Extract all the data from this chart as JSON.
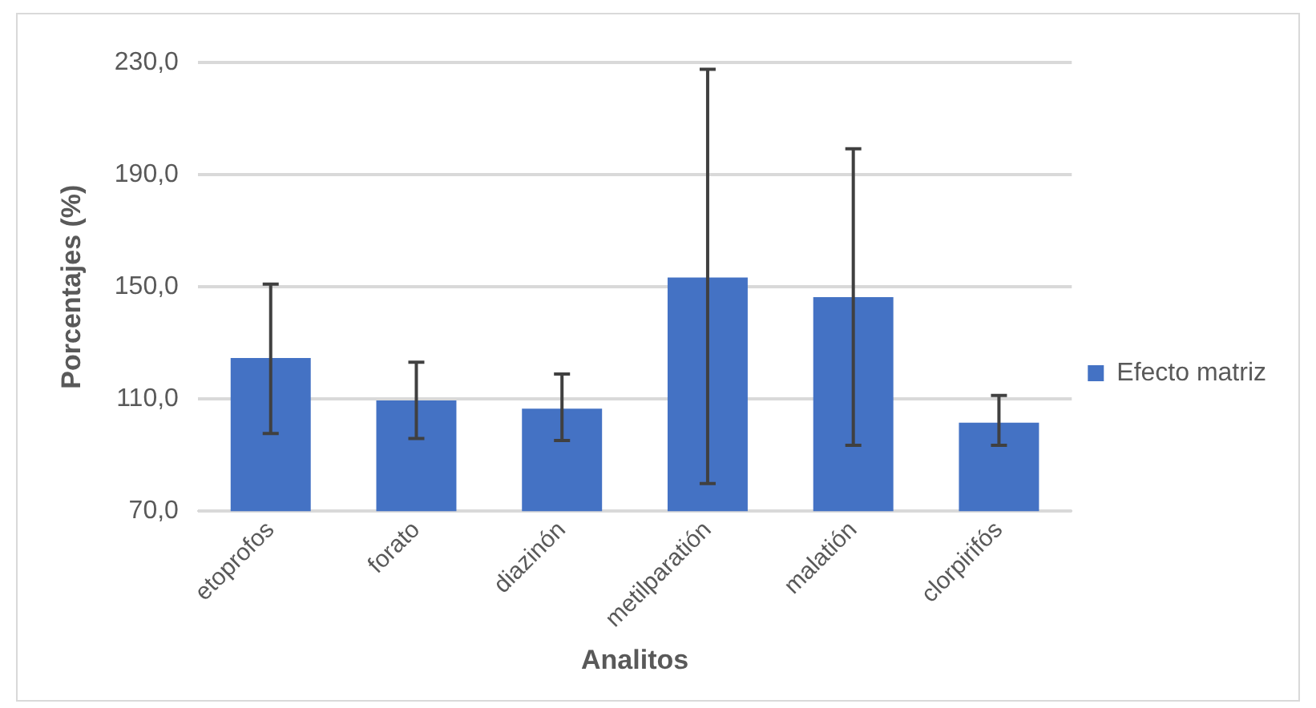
{
  "chart_data": {
    "type": "bar",
    "xlabel": "Analitos",
    "ylabel": "Porcentajes (%)",
    "categories": [
      "etoprofos",
      "forato",
      "diazinón",
      "metilparatión",
      "malatión",
      "clorpirifós"
    ],
    "series": [
      {
        "name": "Efecto matriz",
        "color": "#4472c4",
        "values": [
          124.6,
          109.5,
          106.6,
          153.3,
          146.3,
          101.6
        ],
        "errors": [
          [
            97.7,
            151.0
          ],
          [
            95.9,
            123.1
          ],
          [
            95.2,
            118.9
          ],
          [
            79.9,
            227.6
          ],
          [
            93.5,
            199.2
          ],
          [
            93.5,
            111.3
          ]
        ]
      }
    ],
    "ylim": [
      70,
      230
    ],
    "yticks": [
      {
        "value": 70,
        "label": "70,0"
      },
      {
        "value": 110,
        "label": "110,0"
      },
      {
        "value": 150,
        "label": "150,0"
      },
      {
        "value": 190,
        "label": "190,0"
      },
      {
        "value": 230,
        "label": "230,0"
      }
    ],
    "grid": "y",
    "legend": "right"
  }
}
